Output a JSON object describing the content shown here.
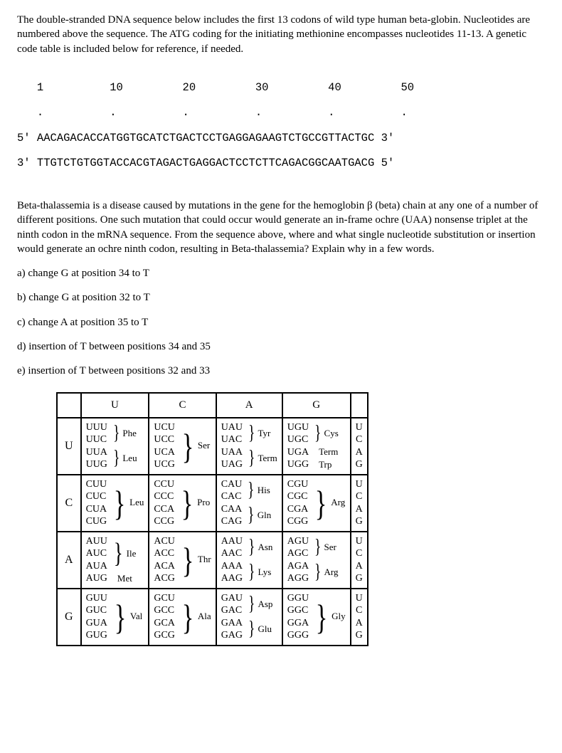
{
  "intro": "The double-stranded DNA sequence below includes the first 13 codons of wild type human beta-globin. Nucleotides are numbered above the sequence. The ATG coding for the initiating methionine encompasses nucleotides 11-13. A genetic code table is included below for reference, if needed.",
  "ruler": {
    "numbers": "   1          10         20         30         40         50",
    "dots": "   .          .          .          .          .          .",
    "top": "5' AACAGACACCATGGTGCATCTGACTCCTGAGGAGAAGTCTGCCGTTACTGC 3'",
    "bot": "3' TTGTCTGTGGTACCACGTAGACTGAGGACTCCTCTTCAGACGGCAATGACG 5'"
  },
  "mid": "Beta-thalassemia is a disease caused by mutations in the gene for the hemoglobin β (beta) chain at any one of a number of different positions. One such mutation that could occur would generate an in-frame ochre (UAA) nonsense triplet at the ninth codon in the mRNA sequence. From the sequence above, where and what single nucleotide substitution or insertion would generate an ochre ninth codon, resulting in Beta-thalassemia? Explain why in a few words.",
  "options": {
    "a": "a) change G at position 34 to T",
    "b": "b) change G at position 32 to T",
    "c": "c) change A at position 35 to T",
    "d": "d) insertion of T between positions 34 and 35",
    "e": "e) insertion of T between positions 32 and 33"
  },
  "table": {
    "col_headers": [
      "U",
      "C",
      "A",
      "G"
    ],
    "third_letters": [
      "U",
      "C",
      "A",
      "G"
    ],
    "rows": [
      {
        "first": "U",
        "cols": [
          {
            "codons": [
              "UUU",
              "UUC",
              "UUA",
              "UUG"
            ],
            "aa": [
              {
                "span": 2,
                "label": "Phe"
              },
              {
                "span": 2,
                "label": "Leu"
              }
            ]
          },
          {
            "codons": [
              "UCU",
              "UCC",
              "UCA",
              "UCG"
            ],
            "aa": [
              {
                "span": 4,
                "label": "Ser"
              }
            ]
          },
          {
            "codons": [
              "UAU",
              "UAC",
              "UAA",
              "UAG"
            ],
            "aa": [
              {
                "span": 2,
                "label": "Tyr"
              },
              {
                "span": 2,
                "label": "Term"
              }
            ]
          },
          {
            "codons": [
              "UGU",
              "UGC",
              "UGA",
              "UGG"
            ],
            "aa": [
              {
                "span": 2,
                "label": "Cys"
              },
              {
                "span": 1,
                "label": "Term"
              },
              {
                "span": 1,
                "label": "Trp"
              }
            ]
          }
        ]
      },
      {
        "first": "C",
        "cols": [
          {
            "codons": [
              "CUU",
              "CUC",
              "CUA",
              "CUG"
            ],
            "aa": [
              {
                "span": 4,
                "label": "Leu"
              }
            ]
          },
          {
            "codons": [
              "CCU",
              "CCC",
              "CCA",
              "CCG"
            ],
            "aa": [
              {
                "span": 4,
                "label": "Pro"
              }
            ]
          },
          {
            "codons": [
              "CAU",
              "CAC",
              "CAA",
              "CAG"
            ],
            "aa": [
              {
                "span": 2,
                "label": "His"
              },
              {
                "span": 2,
                "label": "Gln"
              }
            ]
          },
          {
            "codons": [
              "CGU",
              "CGC",
              "CGA",
              "CGG"
            ],
            "aa": [
              {
                "span": 4,
                "label": "Arg"
              }
            ]
          }
        ]
      },
      {
        "first": "A",
        "cols": [
          {
            "codons": [
              "AUU",
              "AUC",
              "AUA",
              "AUG"
            ],
            "aa": [
              {
                "span": 3,
                "label": "Ile"
              },
              {
                "span": 1,
                "label": "Met"
              }
            ]
          },
          {
            "codons": [
              "ACU",
              "ACC",
              "ACA",
              "ACG"
            ],
            "aa": [
              {
                "span": 4,
                "label": "Thr"
              }
            ]
          },
          {
            "codons": [
              "AAU",
              "AAC",
              "AAA",
              "AAG"
            ],
            "aa": [
              {
                "span": 2,
                "label": "Asn"
              },
              {
                "span": 2,
                "label": "Lys"
              }
            ]
          },
          {
            "codons": [
              "AGU",
              "AGC",
              "AGA",
              "AGG"
            ],
            "aa": [
              {
                "span": 2,
                "label": "Ser"
              },
              {
                "span": 2,
                "label": "Arg"
              }
            ]
          }
        ]
      },
      {
        "first": "G",
        "cols": [
          {
            "codons": [
              "GUU",
              "GUC",
              "GUA",
              "GUG"
            ],
            "aa": [
              {
                "span": 4,
                "label": "Val"
              }
            ]
          },
          {
            "codons": [
              "GCU",
              "GCC",
              "GCA",
              "GCG"
            ],
            "aa": [
              {
                "span": 4,
                "label": "Ala"
              }
            ]
          },
          {
            "codons": [
              "GAU",
              "GAC",
              "GAA",
              "GAG"
            ],
            "aa": [
              {
                "span": 2,
                "label": "Asp"
              },
              {
                "span": 2,
                "label": "Glu"
              }
            ]
          },
          {
            "codons": [
              "GGU",
              "GGC",
              "GGA",
              "GGG"
            ],
            "aa": [
              {
                "span": 4,
                "label": "Gly"
              }
            ]
          }
        ]
      }
    ]
  }
}
